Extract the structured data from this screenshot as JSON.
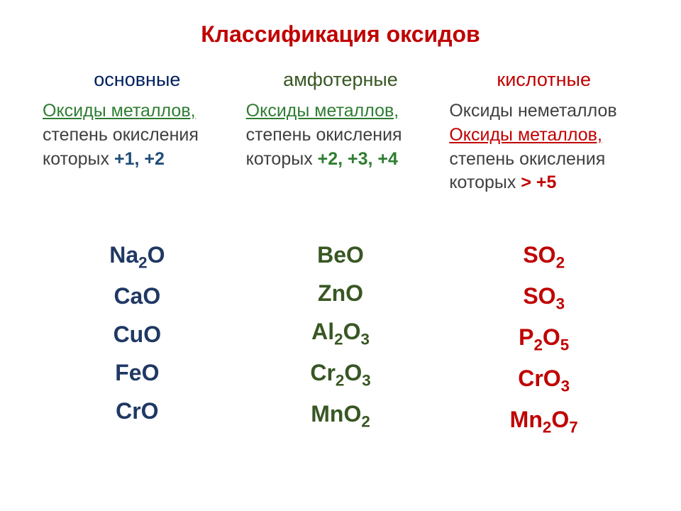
{
  "colors": {
    "title": "#c00000",
    "basic_header": "#002060",
    "amphoteric_header": "#385723",
    "acidic_header": "#c00000",
    "desc_default": "#404040",
    "link_green": "#2e7d32",
    "link_red": "#c00000",
    "accent_blue": "#1f4e79",
    "accent_green": "#2e7d32",
    "accent_red": "#c00000",
    "formula_blue": "#1f3864",
    "formula_green": "#385723",
    "formula_red": "#c00000"
  },
  "title": "Классификация оксидов",
  "columns": {
    "basic": {
      "header": "основные",
      "link_text": "Оксиды металлов,",
      "desc_line2": "степень окисления",
      "desc_line3_prefix": "которых ",
      "desc_line3_accent": "+1, +2",
      "formulas": [
        "Na<sub>2</sub>O",
        "CaO",
        "CuO",
        "FeO",
        "CrO"
      ]
    },
    "amphoteric": {
      "header": "амфотерные",
      "link_text": "Оксиды металлов,",
      "desc_line2": "степень окисления",
      "desc_line3_prefix": "которых ",
      "desc_line3_accent": "+2, +3, +4",
      "formulas": [
        "BeO",
        "ZnO",
        "Al<sub>2</sub>O<sub>3</sub>",
        "Cr<sub>2</sub>O<sub>3</sub>",
        "MnO<sub>2</sub>"
      ]
    },
    "acidic": {
      "header": "кислотные",
      "desc_line1": "Оксиды неметаллов",
      "link_text": "Оксиды металлов,",
      "desc_line3": "степень окисления",
      "desc_line4_prefix": "которых ",
      "desc_line4_accent": "> +5",
      "formulas": [
        "SO<sub>2</sub>",
        "SO<sub>3</sub>",
        "P<sub>2</sub>O<sub>5</sub>",
        "CrO<sub>3</sub>",
        "Mn<sub>2</sub>O<sub>7</sub>"
      ]
    }
  }
}
